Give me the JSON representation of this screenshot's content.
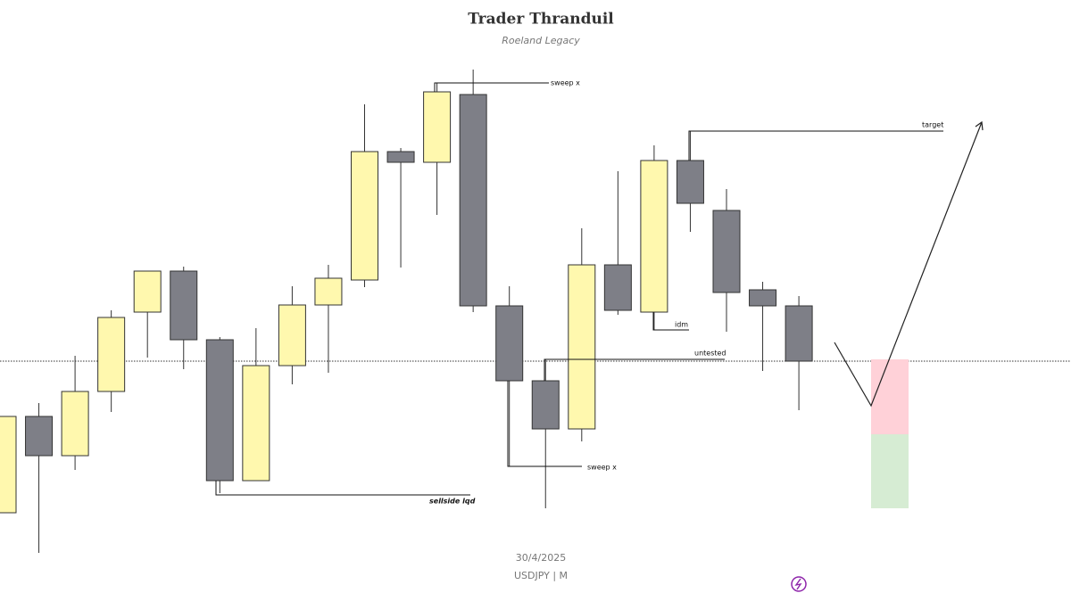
{
  "chart_data": {
    "type": "candlestick",
    "title": "Trader Thranduil",
    "subtitle": "Roeland Legacy",
    "date": "30/4/2025",
    "symbol": "USDJPY | M",
    "up_color": "#fff8ae",
    "down_color": "#7e7f87",
    "ylim": [
      0,
      665
    ],
    "categories": [
      null,
      null,
      null,
      null,
      null,
      null,
      null,
      null,
      null,
      null,
      null,
      null,
      null,
      null,
      null,
      null,
      null,
      null,
      null,
      null,
      null,
      null,
      null
    ],
    "open": [
      90,
      198,
      154,
      226,
      315,
      361,
      284,
      126,
      255,
      323,
      351,
      495,
      483,
      559,
      322,
      238,
      184,
      368,
      315,
      485,
      429,
      340,
      322
    ],
    "high": [
      198,
      213,
      266,
      317,
      361,
      366,
      287,
      297,
      344,
      368,
      548,
      499,
      572,
      587,
      344,
      262,
      409,
      473,
      502,
      518,
      453,
      349,
      333
    ],
    "low": [
      90,
      45,
      138,
      203,
      264,
      251,
      112,
      126,
      234,
      247,
      343,
      365,
      424,
      315,
      142,
      95,
      170,
      312,
      295,
      405,
      293,
      249,
      205
    ],
    "close": [
      198,
      154,
      226,
      309,
      361,
      284,
      126,
      255,
      323,
      353,
      495,
      483,
      562,
      322,
      238,
      184,
      368,
      317,
      485,
      437,
      337,
      322,
      260
    ],
    "annotations": [
      "sweep x",
      "target",
      "idm",
      "untested",
      "sellside lqd",
      "sweep x"
    ]
  }
}
